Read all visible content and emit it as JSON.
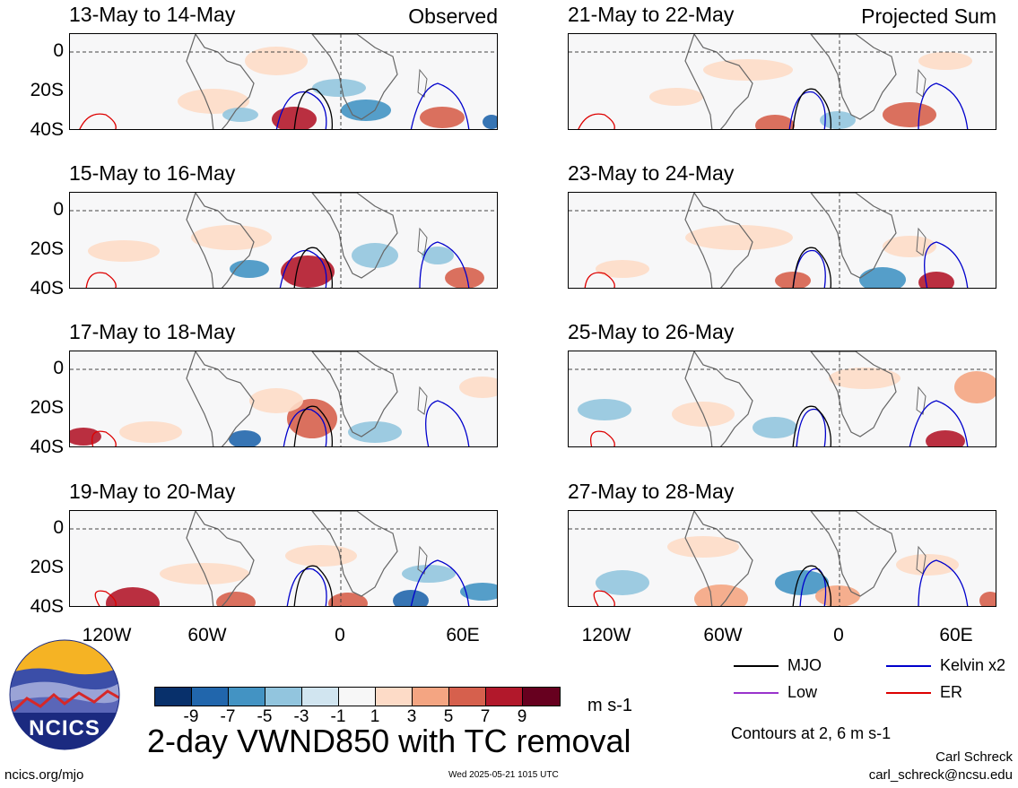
{
  "panels": [
    {
      "title": "13-May to 14-May",
      "label": "Observed",
      "col": 0,
      "row": 0
    },
    {
      "title": "15-May to 16-May",
      "label": "",
      "col": 0,
      "row": 1
    },
    {
      "title": "17-May to 18-May",
      "label": "",
      "col": 0,
      "row": 2
    },
    {
      "title": "19-May to 20-May",
      "label": "",
      "col": 0,
      "row": 3
    },
    {
      "title": "21-May to 22-May",
      "label": "Projected Sum",
      "col": 1,
      "row": 0
    },
    {
      "title": "23-May to 24-May",
      "label": "",
      "col": 1,
      "row": 1
    },
    {
      "title": "25-May to 26-May",
      "label": "",
      "col": 1,
      "row": 2
    },
    {
      "title": "27-May to 28-May",
      "label": "",
      "col": 1,
      "row": 3
    }
  ],
  "yaxis": [
    "0",
    "20S",
    "40S"
  ],
  "xaxis": [
    "120W",
    "60W",
    "0",
    "60E"
  ],
  "colorbar": {
    "colors": [
      "#08306b",
      "#2166ac",
      "#4393c3",
      "#92c5de",
      "#d1e5f0",
      "#f7f7f7",
      "#fddbc7",
      "#f4a582",
      "#d6604d",
      "#b2182b",
      "#67001f"
    ],
    "ticks": [
      "-9",
      "-7",
      "-5",
      "-3",
      "-1",
      "1",
      "3",
      "5",
      "7",
      "9"
    ],
    "units": "m s-1"
  },
  "title": "2-day VWND850 with TC removal",
  "legend": [
    {
      "label": "MJO",
      "color": "#000000"
    },
    {
      "label": "Kelvin x2",
      "color": "#0000cc"
    },
    {
      "label": "Low",
      "color": "#9933cc"
    },
    {
      "label": "ER",
      "color": "#dd0000"
    }
  ],
  "contours_note": "Contours at 2, 6 m s-1",
  "logo_text": "NCICS",
  "footer": {
    "left": "ncics.org/mjo",
    "center": "Wed 2025-05-21 1015 UTC",
    "author": "Carl Schreck",
    "email": "carl_schreck@ncsu.edu"
  }
}
